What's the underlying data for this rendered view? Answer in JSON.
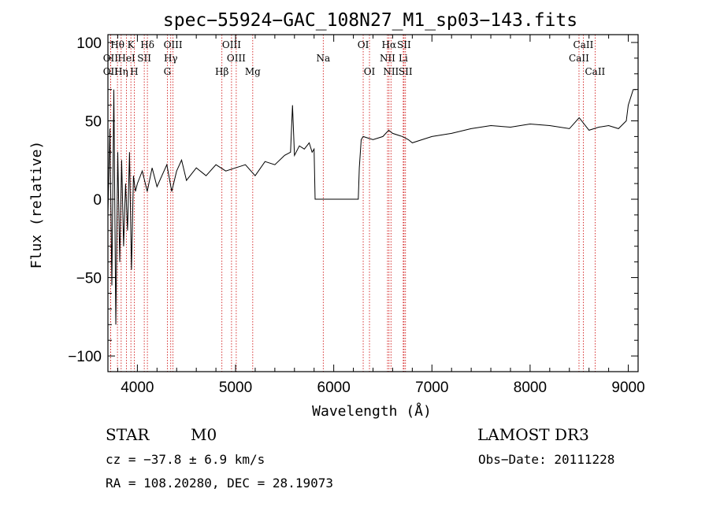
{
  "chart_data": {
    "type": "line",
    "title": "spec−55924−GAC_108N27_M1_sp03−143.fits",
    "xlabel": "Wavelength (Å)",
    "ylabel": "Flux (relative)",
    "xlim": [
      3700,
      9100
    ],
    "ylim": [
      -110,
      105
    ],
    "x_ticks": [
      4000,
      5000,
      6000,
      7000,
      8000,
      9000
    ],
    "x_tick_labels": [
      "4000",
      "5000",
      "6000",
      "7000",
      "8000",
      "9000"
    ],
    "y_ticks": [
      -100,
      -50,
      0,
      50,
      100
    ],
    "y_tick_labels": [
      "−100",
      "−50",
      "0",
      "50",
      "100"
    ],
    "series": [
      {
        "name": "flux",
        "color": "#000000",
        "x": [
          3700,
          3720,
          3740,
          3760,
          3780,
          3800,
          3820,
          3840,
          3860,
          3880,
          3900,
          3920,
          3940,
          3960,
          3980,
          4000,
          4050,
          4100,
          4150,
          4200,
          4250,
          4300,
          4350,
          4400,
          4450,
          4500,
          4600,
          4700,
          4800,
          4900,
          5000,
          5100,
          5200,
          5300,
          5400,
          5500,
          5560,
          5580,
          5600,
          5650,
          5700,
          5750,
          5780,
          5800,
          5810,
          6250,
          6260,
          6280,
          6300,
          6400,
          6500,
          6560,
          6600,
          6700,
          6760,
          6800,
          6900,
          7000,
          7200,
          7400,
          7600,
          7800,
          8000,
          8200,
          8400,
          8500,
          8600,
          8700,
          8800,
          8900,
          8980,
          9000,
          9050,
          9080
        ],
        "y": [
          -10,
          45,
          -55,
          70,
          -80,
          30,
          -40,
          25,
          -30,
          10,
          -20,
          30,
          -45,
          15,
          5,
          10,
          18,
          5,
          20,
          8,
          15,
          22,
          5,
          18,
          25,
          12,
          20,
          15,
          22,
          18,
          20,
          22,
          15,
          24,
          22,
          28,
          30,
          60,
          28,
          34,
          32,
          36,
          30,
          32,
          0,
          0,
          20,
          38,
          40,
          38,
          40,
          44,
          42,
          40,
          38,
          36,
          38,
          40,
          42,
          45,
          47,
          46,
          48,
          47,
          45,
          52,
          44,
          46,
          47,
          45,
          50,
          60,
          70,
          70
        ]
      }
    ],
    "lines": [
      {
        "name": "Hθ",
        "wl": 3797,
        "row": 0
      },
      {
        "name": "K",
        "wl": 3934,
        "row": 0
      },
      {
        "name": "Hδ",
        "wl": 4102,
        "row": 0
      },
      {
        "name": "OIII",
        "wl": 4363,
        "row": 0
      },
      {
        "name": "OIII",
        "wl": 4959,
        "row": 0
      },
      {
        "name": "OI",
        "wl": 6300,
        "row": 0
      },
      {
        "name": "Hα",
        "wl": 6563,
        "row": 0
      },
      {
        "name": "SII",
        "wl": 6716,
        "row": 0
      },
      {
        "name": "CaII",
        "wl": 8542,
        "row": 0
      },
      {
        "name": "OII",
        "wl": 3727,
        "row": 1
      },
      {
        "name": "HeI",
        "wl": 3889,
        "row": 1
      },
      {
        "name": "SII",
        "wl": 4070,
        "row": 1
      },
      {
        "name": "Hγ",
        "wl": 4340,
        "row": 1
      },
      {
        "name": "OIII",
        "wl": 5007,
        "row": 1
      },
      {
        "name": "Na",
        "wl": 5893,
        "row": 1
      },
      {
        "name": "NII",
        "wl": 6548,
        "row": 1
      },
      {
        "name": "Li",
        "wl": 6708,
        "row": 1
      },
      {
        "name": "CaII",
        "wl": 8498,
        "row": 1
      },
      {
        "name": "OII",
        "wl": 3727,
        "row": 2
      },
      {
        "name": "Hη",
        "wl": 3835,
        "row": 2
      },
      {
        "name": "H",
        "wl": 3968,
        "row": 2
      },
      {
        "name": "G",
        "wl": 4305,
        "row": 2
      },
      {
        "name": "Hβ",
        "wl": 4861,
        "row": 2
      },
      {
        "name": "Mg",
        "wl": 5175,
        "row": 2
      },
      {
        "name": "OI",
        "wl": 6364,
        "row": 2
      },
      {
        "name": "NII",
        "wl": 6583,
        "row": 2
      },
      {
        "name": "SII",
        "wl": 6731,
        "row": 2
      },
      {
        "name": "CaII",
        "wl": 8662,
        "row": 2
      }
    ]
  },
  "info": {
    "class": "STAR",
    "subclass": "M0",
    "survey": "LAMOST DR3",
    "cz": "cz = −37.8 ± 6.9 km/s",
    "obs_date": "Obs−Date: 20111228",
    "radec": "RA = 108.20280, DEC =  28.19073"
  },
  "colors": {
    "axis": "#000000",
    "spectrum": "#000000",
    "line_marker": "#cc0000"
  }
}
